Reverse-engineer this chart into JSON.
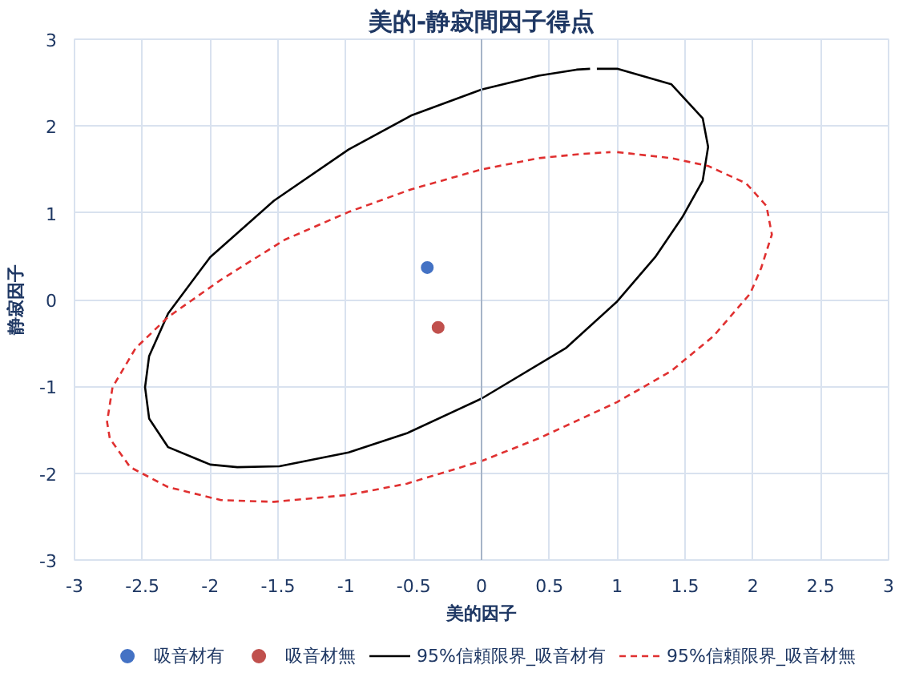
{
  "chart_data": {
    "type": "scatter",
    "title": "美的-静寂間因子得点",
    "xlabel": "美的因子",
    "ylabel": "静寂因子",
    "xlim": [
      -3,
      3
    ],
    "ylim": [
      -3,
      3
    ],
    "xticks": [
      -3,
      -2.5,
      -2,
      -1.5,
      -1,
      -0.5,
      0,
      0.5,
      1,
      1.5,
      2,
      2.5,
      3
    ],
    "yticks": [
      -3,
      -2,
      -1,
      0,
      1,
      2,
      3
    ],
    "grid": true,
    "legend": "bottom",
    "series": [
      {
        "name": "吸音材有",
        "marker": "circle",
        "color": "#4472c4",
        "x": [
          -0.4
        ],
        "values": [
          0.37
        ]
      },
      {
        "name": "吸音材無",
        "marker": "circle",
        "color": "#c0504d",
        "x": [
          -0.32
        ],
        "values": [
          -0.32
        ]
      },
      {
        "name": "95%信頼限界_吸音材有",
        "type": "line",
        "marker": "none",
        "line_style": "solid",
        "color": "#000000",
        "x": [
          0.85,
          1.0,
          1.4,
          1.63,
          1.67,
          1.63,
          1.48,
          1.28,
          1.0,
          0.62,
          0,
          -0.55,
          -0.98,
          -1.49,
          -1.8,
          -2.0,
          -2.31,
          -2.45,
          -2.48,
          -2.45,
          -2.31,
          -2.0,
          -1.53,
          -0.98,
          -0.52,
          0,
          0.42,
          0.7,
          0.8
        ],
        "values": [
          2.66,
          2.66,
          2.48,
          2.09,
          1.76,
          1.37,
          0.95,
          0.49,
          -0.02,
          -0.56,
          -1.14,
          -1.54,
          -1.76,
          -1.92,
          -1.93,
          -1.9,
          -1.7,
          -1.37,
          -1.01,
          -0.65,
          -0.16,
          0.49,
          1.14,
          1.73,
          2.12,
          2.42,
          2.58,
          2.65,
          2.66
        ]
      },
      {
        "name": "95%信頼限界_吸音材無",
        "type": "line",
        "marker": "none",
        "line_style": "dashed",
        "color": "#e03030",
        "x": [
          1.0,
          1.4,
          1.67,
          1.95,
          2.1,
          2.14,
          2.06,
          1.98,
          1.71,
          1.4,
          1.0,
          0.42,
          0,
          -0.55,
          -0.98,
          -1.53,
          -1.92,
          -2.31,
          -2.59,
          -2.74,
          -2.76,
          -2.72,
          -2.55,
          -2.31,
          -1.92,
          -1.45,
          -0.98,
          -0.52,
          0,
          0.42,
          0.75,
          0.95
        ],
        "values": [
          1.7,
          1.63,
          1.54,
          1.34,
          1.08,
          0.75,
          0.36,
          0.07,
          -0.42,
          -0.82,
          -1.18,
          -1.6,
          -1.86,
          -2.12,
          -2.25,
          -2.33,
          -2.31,
          -2.16,
          -1.93,
          -1.6,
          -1.41,
          -1.01,
          -0.56,
          -0.2,
          0.23,
          0.69,
          1.01,
          1.27,
          1.5,
          1.63,
          1.68,
          1.7
        ]
      }
    ]
  }
}
